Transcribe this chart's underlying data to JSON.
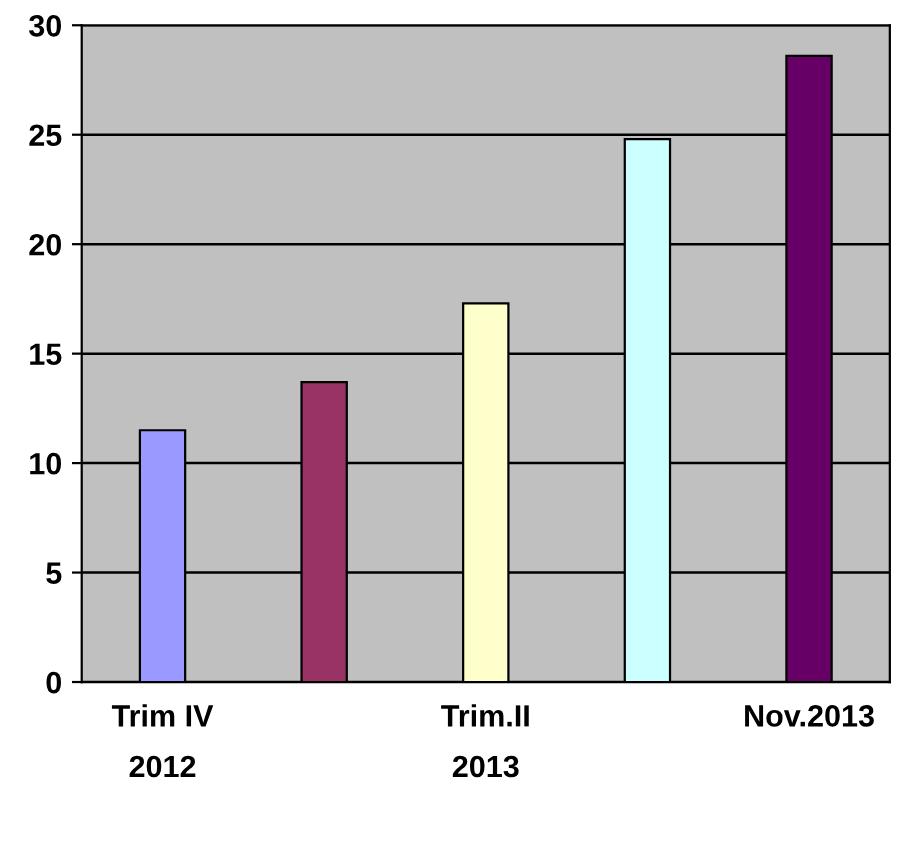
{
  "chart_data": {
    "type": "bar",
    "categories": [
      "Trim IV\n2012",
      null,
      "Trim.II\n2013",
      null,
      "Nov.2013"
    ],
    "values": [
      11.5,
      13.7,
      17.3,
      24.8,
      28.6
    ],
    "colors": [
      "#9999ff",
      "#993366",
      "#ffffcc",
      "#ccffff",
      "#660066"
    ],
    "ylim": [
      0,
      30
    ],
    "yticks": [
      0,
      5,
      10,
      15,
      20,
      25,
      30
    ],
    "grid": "y",
    "legend": false
  }
}
